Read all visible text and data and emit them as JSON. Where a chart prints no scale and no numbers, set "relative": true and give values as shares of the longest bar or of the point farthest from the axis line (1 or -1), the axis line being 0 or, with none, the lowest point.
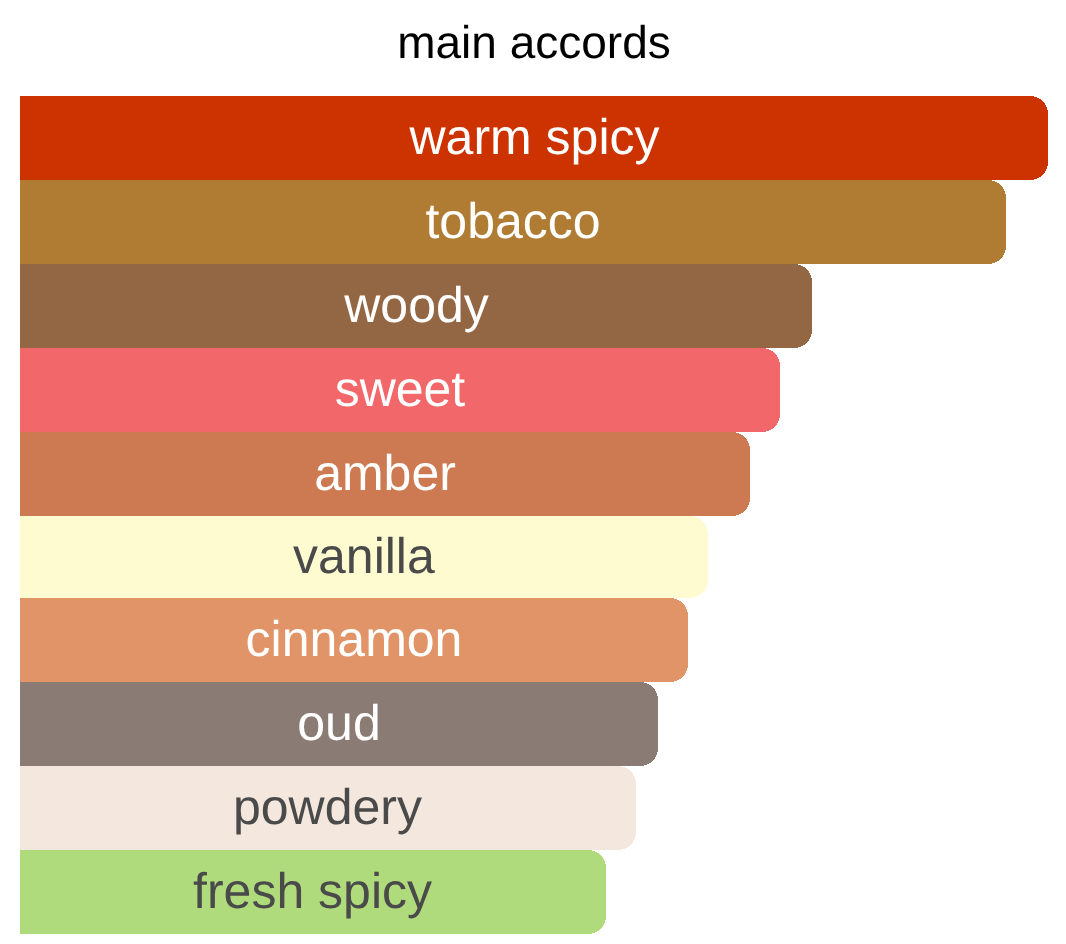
{
  "chart_data": {
    "type": "bar",
    "orientation": "horizontal",
    "relative": true,
    "title": "main accords",
    "categories": [
      "warm spicy",
      "tobacco",
      "woody",
      "sweet",
      "amber",
      "vanilla",
      "cinnamon",
      "oud",
      "powdery",
      "fresh spicy"
    ],
    "values": [
      1,
      0.96,
      0.77,
      0.74,
      0.71,
      0.67,
      0.65,
      0.62,
      0.6,
      0.57
    ],
    "colors": [
      "#cc3300",
      "#b07c33",
      "#946744",
      "#f2686a",
      "#cd7a52",
      "#fffbd0",
      "#e19467",
      "#8a7c74",
      "#f3e7de",
      "#b0db7c"
    ]
  }
}
